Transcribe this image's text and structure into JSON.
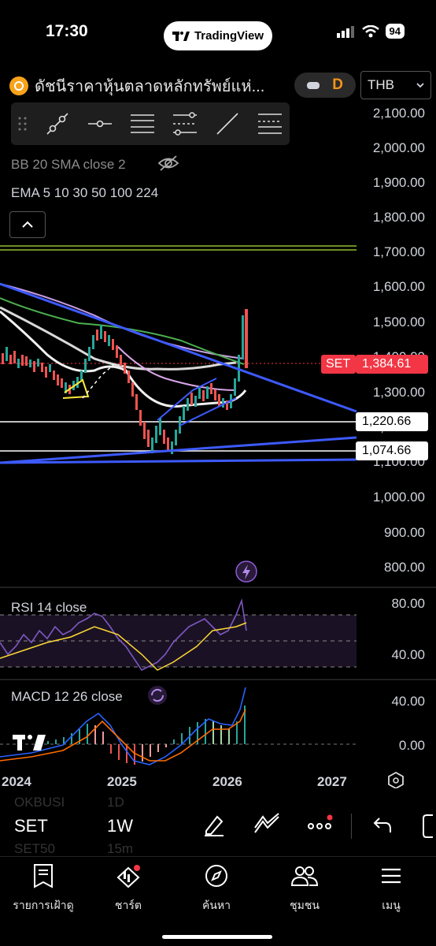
{
  "status": {
    "time": "17:30",
    "app_badge": "TradingView",
    "battery": "94"
  },
  "symbol": {
    "name": "ดัชนีราคาหุ้นตลาดหลักทรัพย์แห่...",
    "interval_badge": "D"
  },
  "currency_select": {
    "value": "THB"
  },
  "indicators": {
    "bb": "BB 20 SMA close 2",
    "ema": "EMA 5 10 30 50 100 224",
    "rsi": "RSI 14 close",
    "macd": "MACD 12 26 close"
  },
  "price_axis": [
    "2,100.00",
    "2,000.00",
    "1,900.00",
    "1,800.00",
    "1,700.00",
    "1,600.00",
    "1,500.00",
    "1,400.00",
    "1,300.00",
    "1,200.00",
    "1,100.00",
    "1,000.00",
    "900.00",
    "800.00"
  ],
  "price_tags": {
    "last_label": "SET",
    "last_value": "1,384.61",
    "line1": "1,220.66",
    "line2": "1,074.66"
  },
  "rsi_axis": [
    "80.00",
    "40.00"
  ],
  "macd_axis": [
    "40.00",
    "0.00"
  ],
  "time_axis": [
    "2024",
    "2025",
    "2026",
    "2027"
  ],
  "bottom_toolbar": {
    "symbol": "SET",
    "interval": "1W",
    "ghost_symbol_top": "OKBUSI",
    "ghost_interval_top": "1D",
    "ghost_symbol_bottom": "SET50",
    "ghost_interval_bottom": "15m"
  },
  "tabs": [
    {
      "label": "รายการเฝ้าดู",
      "icon": "watchlist-icon"
    },
    {
      "label": "ชาร์ต",
      "icon": "chart-icon"
    },
    {
      "label": "ค้นหา",
      "icon": "compass-icon"
    },
    {
      "label": "ชุมชน",
      "icon": "community-icon"
    },
    {
      "label": "เมนู",
      "icon": "menu-icon"
    }
  ],
  "colors": {
    "background": "#000000",
    "up": "#26a69a",
    "down": "#ef5350",
    "trendline": "#3d5afe",
    "rsi": "#7e57c2",
    "tag_red": "#f23645"
  }
}
